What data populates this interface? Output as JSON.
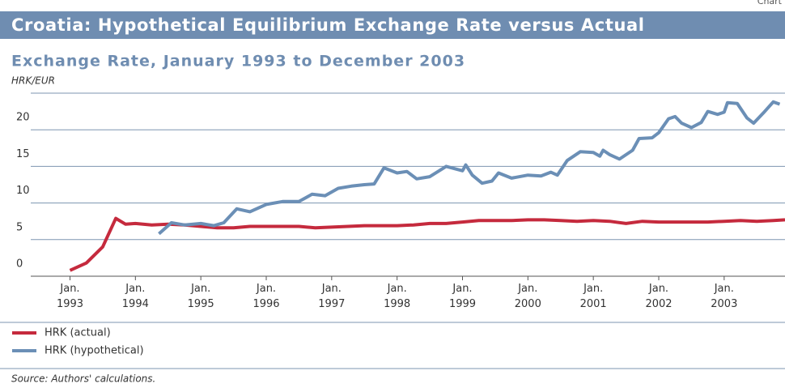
{
  "chart_data": {
    "type": "line",
    "corner_label": "Chart",
    "title": "Croatia: Hypothetical Equilibrium Exchange Rate versus Actual",
    "subtitle": "Exchange Rate, January 1993 to December 2003",
    "y_label": "HRK/EUR",
    "source": "Source: Authors' calculations.",
    "xlim": [
      1992.4,
      2003.93
    ],
    "xticks": [
      {
        "value": 1993,
        "label": "Jan. 1993"
      },
      {
        "value": 1994,
        "label": "Jan. 1994"
      },
      {
        "value": 1995,
        "label": "Jan. 1995"
      },
      {
        "value": 1996,
        "label": "Jan. 1996"
      },
      {
        "value": 1997,
        "label": "Jan. 1997"
      },
      {
        "value": 1998,
        "label": "Jan. 1998"
      },
      {
        "value": 1999,
        "label": "Jan. 1999"
      },
      {
        "value": 2000,
        "label": "Jan. 2000"
      },
      {
        "value": 2001,
        "label": "Jan. 2001"
      },
      {
        "value": 2002,
        "label": "Jan. 2002"
      },
      {
        "value": 2003,
        "label": "Jan. 2003"
      }
    ],
    "ylim": [
      0,
      25
    ],
    "yticks": [
      0,
      5,
      10,
      15,
      20
    ],
    "grid": true,
    "legend": "bottom-left",
    "series": [
      {
        "name": "HRK (actual)",
        "color": "#c52a3d",
        "x": [
          1993.0,
          1993.25,
          1993.5,
          1993.7,
          1993.85,
          1994.0,
          1994.25,
          1994.5,
          1994.75,
          1995.0,
          1995.25,
          1995.5,
          1995.75,
          1996.0,
          1996.25,
          1996.5,
          1996.75,
          1997.0,
          1997.25,
          1997.5,
          1997.75,
          1998.0,
          1998.25,
          1998.5,
          1998.75,
          1999.0,
          1999.25,
          1999.5,
          1999.75,
          2000.0,
          2000.25,
          2000.5,
          2000.75,
          2001.0,
          2001.25,
          2001.5,
          2001.75,
          2002.0,
          2002.25,
          2002.5,
          2002.75,
          2003.0,
          2003.25,
          2003.5,
          2003.75,
          2003.93
        ],
        "values": [
          0.8,
          1.8,
          4.0,
          7.9,
          7.1,
          7.2,
          7.0,
          7.1,
          7.0,
          6.8,
          6.6,
          6.6,
          6.8,
          6.8,
          6.8,
          6.8,
          6.6,
          6.7,
          6.8,
          6.9,
          6.9,
          6.9,
          7.0,
          7.2,
          7.2,
          7.4,
          7.6,
          7.6,
          7.6,
          7.7,
          7.7,
          7.6,
          7.5,
          7.6,
          7.5,
          7.2,
          7.5,
          7.4,
          7.4,
          7.4,
          7.4,
          7.5,
          7.6,
          7.5,
          7.6,
          7.7
        ]
      },
      {
        "name": "HRK (hypothetical)",
        "color": "#6b8fb6",
        "x": [
          1994.36,
          1994.55,
          1994.75,
          1995.0,
          1995.2,
          1995.35,
          1995.55,
          1995.75,
          1996.0,
          1996.25,
          1996.5,
          1996.7,
          1996.9,
          1997.1,
          1997.3,
          1997.5,
          1997.65,
          1997.8,
          1998.0,
          1998.15,
          1998.3,
          1998.5,
          1998.75,
          1999.0,
          1999.05,
          1999.15,
          1999.3,
          1999.45,
          1999.55,
          1999.75,
          2000.0,
          2000.2,
          2000.35,
          2000.45,
          2000.6,
          2000.8,
          2001.0,
          2001.1,
          2001.15,
          2001.25,
          2001.4,
          2001.6,
          2001.7,
          2001.9,
          2002.0,
          2002.15,
          2002.25,
          2002.35,
          2002.5,
          2002.65,
          2002.75,
          2002.9,
          2003.0,
          2003.05,
          2003.2,
          2003.35,
          2003.45,
          2003.6,
          2003.75,
          2003.85
        ],
        "values": [
          5.8,
          7.3,
          7.0,
          7.2,
          6.9,
          7.3,
          9.2,
          8.8,
          9.8,
          10.2,
          10.2,
          11.2,
          11.0,
          12.0,
          12.3,
          12.5,
          12.6,
          14.8,
          14.1,
          14.3,
          13.3,
          13.6,
          15.0,
          14.4,
          15.2,
          13.8,
          12.7,
          13.0,
          14.1,
          13.4,
          13.8,
          13.7,
          14.2,
          13.8,
          15.8,
          17.0,
          16.9,
          16.4,
          17.2,
          16.6,
          16.0,
          17.2,
          18.8,
          18.9,
          19.6,
          21.5,
          21.8,
          20.9,
          20.3,
          21.0,
          22.5,
          22.1,
          22.4,
          23.7,
          23.6,
          21.6,
          20.9,
          22.3,
          23.8,
          23.5
        ]
      }
    ]
  }
}
